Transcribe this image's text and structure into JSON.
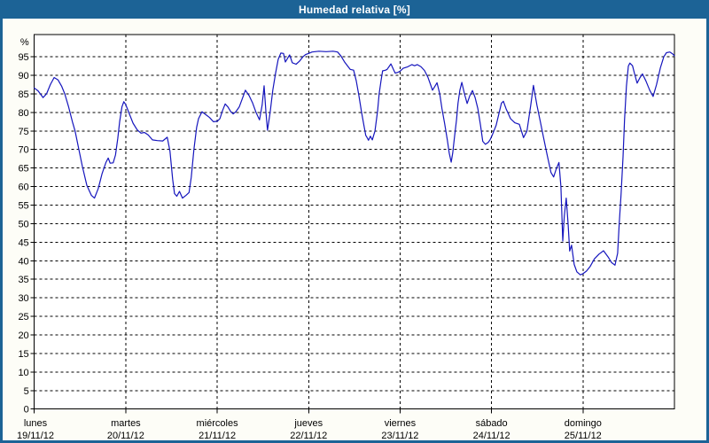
{
  "window": {
    "title": "Humedad relativa [%]"
  },
  "colors": {
    "frame": "#1c6396",
    "title_text": "#ffffff",
    "margin_bg": "#fdfdf7",
    "plot_bg": "#ffffff",
    "grid": "#000000",
    "axis": "#000000",
    "label_text": "#000000",
    "line": "#1515bd"
  },
  "chart_data": {
    "type": "line",
    "title": "Humedad relativa [%]",
    "ylabel": "%",
    "xlabel": "",
    "grid": true,
    "legend": "none",
    "x_unit": "hours_from_monday_2012-11-19_00:00",
    "xlim": [
      0,
      168
    ],
    "ylim": [
      0,
      101
    ],
    "y_ticks": [
      0,
      5,
      10,
      15,
      20,
      25,
      30,
      35,
      40,
      45,
      50,
      55,
      60,
      65,
      70,
      75,
      80,
      85,
      90,
      95
    ],
    "x_day_ticks_hours": [
      0,
      24,
      48,
      72,
      96,
      120,
      144
    ],
    "days": [
      {
        "name": "lunes",
        "date": "19/11/12"
      },
      {
        "name": "martes",
        "date": "20/11/12"
      },
      {
        "name": "miércoles",
        "date": "21/11/12"
      },
      {
        "name": "jueves",
        "date": "22/11/12"
      },
      {
        "name": "viernes",
        "date": "23/11/12"
      },
      {
        "name": "sábado",
        "date": "24/11/12"
      },
      {
        "name": "domingo",
        "date": "25/11/12"
      }
    ],
    "series": [
      {
        "name": "Humedad relativa",
        "points": [
          [
            0,
            86.6
          ],
          [
            1,
            85.8
          ],
          [
            2.3,
            84
          ],
          [
            3.2,
            85
          ],
          [
            4.2,
            87.5
          ],
          [
            5.2,
            89.4
          ],
          [
            6.2,
            88.8
          ],
          [
            7.2,
            87
          ],
          [
            8,
            85
          ],
          [
            9,
            81.5
          ],
          [
            10,
            77.5
          ],
          [
            10.7,
            75
          ],
          [
            11.7,
            70
          ],
          [
            12.6,
            65.5
          ],
          [
            13.8,
            60.3
          ],
          [
            15,
            57.6
          ],
          [
            15.8,
            56.9
          ],
          [
            16.8,
            59.5
          ],
          [
            17.8,
            63.5
          ],
          [
            18.8,
            66.5
          ],
          [
            19.4,
            67.7
          ],
          [
            19.9,
            66.3
          ],
          [
            20.7,
            66.4
          ],
          [
            21.3,
            68.5
          ],
          [
            21.9,
            73
          ],
          [
            22.4,
            77.5
          ],
          [
            23,
            81.5
          ],
          [
            23.5,
            82.9
          ],
          [
            24,
            82.1
          ],
          [
            24.9,
            79.7
          ],
          [
            25.9,
            77.1
          ],
          [
            27,
            75.3
          ],
          [
            28,
            74.4
          ],
          [
            28.9,
            74.6
          ],
          [
            29.9,
            73.9
          ],
          [
            31,
            72.6
          ],
          [
            32.3,
            72.4
          ],
          [
            33.7,
            72.3
          ],
          [
            34.9,
            73.3
          ],
          [
            35.6,
            69.5
          ],
          [
            36.3,
            62
          ],
          [
            36.8,
            58.1
          ],
          [
            37.4,
            57.4
          ],
          [
            38.1,
            58.7
          ],
          [
            38.9,
            56.9
          ],
          [
            39.9,
            57.7
          ],
          [
            40.6,
            58.4
          ],
          [
            41.2,
            62.5
          ],
          [
            41.9,
            70
          ],
          [
            42.6,
            76
          ],
          [
            43.1,
            78.3
          ],
          [
            44,
            80.2
          ],
          [
            45,
            79.4
          ],
          [
            46,
            78.6
          ],
          [
            47,
            77.5
          ],
          [
            48,
            77.6
          ],
          [
            48.7,
            78.3
          ],
          [
            49.4,
            80.5
          ],
          [
            50.1,
            82.3
          ],
          [
            50.8,
            81.5
          ],
          [
            51.5,
            80.3
          ],
          [
            52.2,
            79.6
          ],
          [
            52.9,
            80.2
          ],
          [
            53.8,
            81.5
          ],
          [
            54.7,
            84
          ],
          [
            55.4,
            86
          ],
          [
            56.4,
            84.5
          ],
          [
            57.3,
            82.5
          ],
          [
            58.2,
            80
          ],
          [
            59.1,
            78
          ],
          [
            59.8,
            82
          ],
          [
            60.3,
            87.2
          ],
          [
            60.8,
            80
          ],
          [
            61.2,
            75.2
          ],
          [
            61.9,
            80
          ],
          [
            62.6,
            86
          ],
          [
            63.3,
            90.5
          ],
          [
            64,
            94.3
          ],
          [
            64.7,
            96
          ],
          [
            65.4,
            95.9
          ],
          [
            65.9,
            93.6
          ],
          [
            66.6,
            94.8
          ],
          [
            67,
            95.5
          ],
          [
            67.7,
            93.4
          ],
          [
            68.7,
            93
          ],
          [
            69.6,
            93.8
          ],
          [
            70.5,
            95
          ],
          [
            71.2,
            95.6
          ],
          [
            72,
            95.9
          ],
          [
            72.9,
            96.3
          ],
          [
            74.7,
            96.5
          ],
          [
            76.6,
            96.4
          ],
          [
            78.4,
            96.5
          ],
          [
            79.6,
            96.3
          ],
          [
            80.5,
            95.2
          ],
          [
            81.5,
            93.5
          ],
          [
            82.9,
            91.6
          ],
          [
            83.8,
            91.4
          ],
          [
            84.5,
            88.5
          ],
          [
            85.2,
            84.5
          ],
          [
            85.9,
            80
          ],
          [
            86.6,
            76
          ],
          [
            87,
            73.8
          ],
          [
            87.3,
            73.3
          ],
          [
            87.7,
            72.5
          ],
          [
            88.2,
            73.6
          ],
          [
            88.7,
            72.6
          ],
          [
            89.4,
            75
          ],
          [
            90.1,
            80.5
          ],
          [
            90.5,
            85
          ],
          [
            91,
            88.5
          ],
          [
            91.4,
            91.2
          ],
          [
            92.2,
            91.4
          ],
          [
            92.6,
            91.6
          ],
          [
            93.6,
            93.1
          ],
          [
            94.3,
            91.5
          ],
          [
            94.7,
            90.6
          ],
          [
            95.4,
            90.8
          ],
          [
            96,
            91.1
          ],
          [
            96.8,
            91.9
          ],
          [
            98,
            92.3
          ],
          [
            99.1,
            92.9
          ],
          [
            99.8,
            92.6
          ],
          [
            100.5,
            92.9
          ],
          [
            101.5,
            92.3
          ],
          [
            102.4,
            91.3
          ],
          [
            103.3,
            89.5
          ],
          [
            104,
            87.5
          ],
          [
            104.5,
            86
          ],
          [
            105,
            86.8
          ],
          [
            105.7,
            88
          ],
          [
            106.4,
            85
          ],
          [
            107,
            81
          ],
          [
            107.7,
            77
          ],
          [
            108.4,
            72.5
          ],
          [
            108.9,
            69
          ],
          [
            109.4,
            66.6
          ],
          [
            109.8,
            69
          ],
          [
            110.3,
            73.5
          ],
          [
            110.8,
            78
          ],
          [
            111.2,
            82.5
          ],
          [
            111.7,
            86
          ],
          [
            112.2,
            88.1
          ],
          [
            112.9,
            85
          ],
          [
            113.6,
            82.4
          ],
          [
            114.3,
            84.5
          ],
          [
            115,
            85.9
          ],
          [
            115.7,
            84
          ],
          [
            116.4,
            81
          ],
          [
            117.1,
            76.5
          ],
          [
            117.7,
            72.2
          ],
          [
            118.4,
            71.4
          ],
          [
            119.1,
            71.9
          ],
          [
            119.6,
            72.6
          ],
          [
            120.1,
            73.7
          ],
          [
            121.2,
            76.5
          ],
          [
            122.6,
            82.5
          ],
          [
            123.1,
            83
          ],
          [
            123.8,
            81
          ],
          [
            125,
            78.3
          ],
          [
            126.1,
            77.2
          ],
          [
            127.3,
            76.8
          ],
          [
            128.4,
            73.2
          ],
          [
            129.3,
            75
          ],
          [
            130.3,
            82
          ],
          [
            131,
            87.3
          ],
          [
            131.9,
            82
          ],
          [
            132.8,
            77.5
          ],
          [
            133.7,
            73
          ],
          [
            134.6,
            68.5
          ],
          [
            135.6,
            63.8
          ],
          [
            136.3,
            62.6
          ],
          [
            137,
            64.8
          ],
          [
            137.7,
            66.5
          ],
          [
            138.2,
            60
          ],
          [
            138.7,
            45.3
          ],
          [
            139.1,
            52
          ],
          [
            139.6,
            56.9
          ],
          [
            140.1,
            50
          ],
          [
            140.5,
            42.6
          ],
          [
            141,
            44.2
          ],
          [
            141.7,
            39
          ],
          [
            142.4,
            37
          ],
          [
            143.3,
            36.2
          ],
          [
            144,
            36.5
          ],
          [
            144.9,
            37.2
          ],
          [
            145.9,
            38.5
          ],
          [
            147,
            40.5
          ],
          [
            148.2,
            41.8
          ],
          [
            149.4,
            42.7
          ],
          [
            150.6,
            41
          ],
          [
            151.5,
            39.5
          ],
          [
            152.4,
            38.8
          ],
          [
            153.1,
            42
          ],
          [
            153.5,
            50
          ],
          [
            154,
            58
          ],
          [
            154.5,
            68
          ],
          [
            154.9,
            78
          ],
          [
            155.4,
            87
          ],
          [
            155.9,
            92.5
          ],
          [
            156.3,
            93.3
          ],
          [
            157,
            92.6
          ],
          [
            157.5,
            90.5
          ],
          [
            158.2,
            87.9
          ],
          [
            158.9,
            89.3
          ],
          [
            159.6,
            90.4
          ],
          [
            160.5,
            88.5
          ],
          [
            161.5,
            86
          ],
          [
            162.4,
            84.3
          ],
          [
            163.3,
            87.5
          ],
          [
            164.3,
            92
          ],
          [
            165.2,
            95
          ],
          [
            165.9,
            96.1
          ],
          [
            166.8,
            96.3
          ],
          [
            167.5,
            95.8
          ],
          [
            168,
            95.3
          ]
        ]
      }
    ]
  }
}
